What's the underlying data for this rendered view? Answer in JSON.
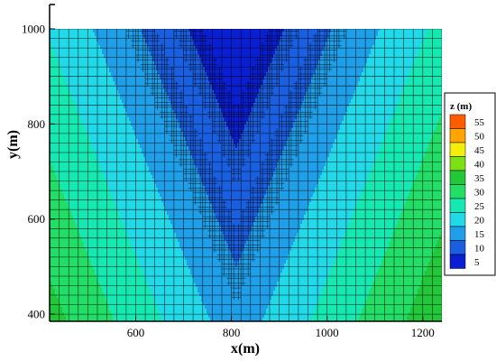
{
  "chart_data": {
    "type": "heatmap",
    "title": "",
    "xlabel": "x(m)",
    "ylabel": "y(m)",
    "xlim": [
      420,
      1240
    ],
    "ylim": [
      385,
      1000
    ],
    "x_ticks": [
      600,
      800,
      1000,
      1200
    ],
    "y_ticks": [
      400,
      600,
      800,
      1000
    ],
    "grid": true,
    "legend": {
      "title": "z (m)",
      "position": "right",
      "levels": [
        5,
        10,
        15,
        20,
        25,
        30,
        35,
        40,
        45,
        50,
        55
      ],
      "colors": [
        "#0a1fd2",
        "#1a5fe0",
        "#1f9fe8",
        "#22d9e8",
        "#16e8b2",
        "#22dd66",
        "#22c83a",
        "#7ce017",
        "#f2ef0a",
        "#ffa400",
        "#ff5c00"
      ]
    },
    "field": {
      "description_values": "z = v-shaped valley along x=810",
      "center_x": 810,
      "tip_y_5": 750,
      "tip_y_10": 500
    }
  }
}
